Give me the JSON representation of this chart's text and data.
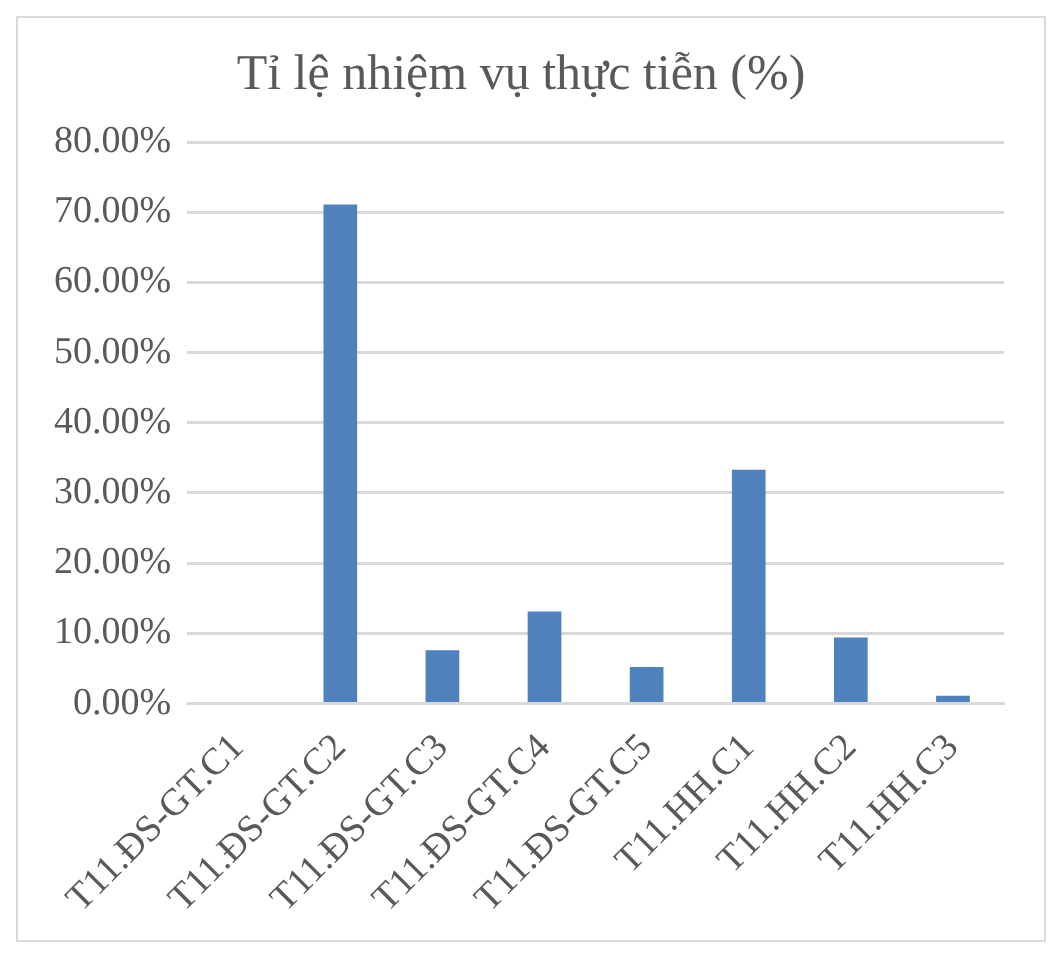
{
  "chart_data": {
    "type": "bar",
    "title": "Tỉ lệ nhiệm vụ thực tiễn (%)",
    "categories": [
      "T11.ĐS-GT.C1",
      "T11.ĐS-GT.C2",
      "T11.ĐS-GT.C3",
      "T11.ĐS-GT.C4",
      "T11.ĐS-GT.C5",
      "T11.HH.C1",
      "T11.HH.C2",
      "T11.HH.C3"
    ],
    "values": [
      0,
      71.1,
      7.6,
      13.1,
      5.2,
      33.3,
      9.4,
      1.1
    ],
    "color": "#4f81bd",
    "ylim": [
      0,
      80
    ],
    "yticks": [
      {
        "value": 0,
        "label": "0.00%"
      },
      {
        "value": 10,
        "label": "10.00%"
      },
      {
        "value": 20,
        "label": "20.00%"
      },
      {
        "value": 30,
        "label": "30.00%"
      },
      {
        "value": 40,
        "label": "40.00%"
      },
      {
        "value": 50,
        "label": "50.00%"
      },
      {
        "value": 60,
        "label": "60.00%"
      },
      {
        "value": 70,
        "label": "70.00%"
      },
      {
        "value": 80,
        "label": "80.00%"
      }
    ],
    "grid": "y"
  }
}
